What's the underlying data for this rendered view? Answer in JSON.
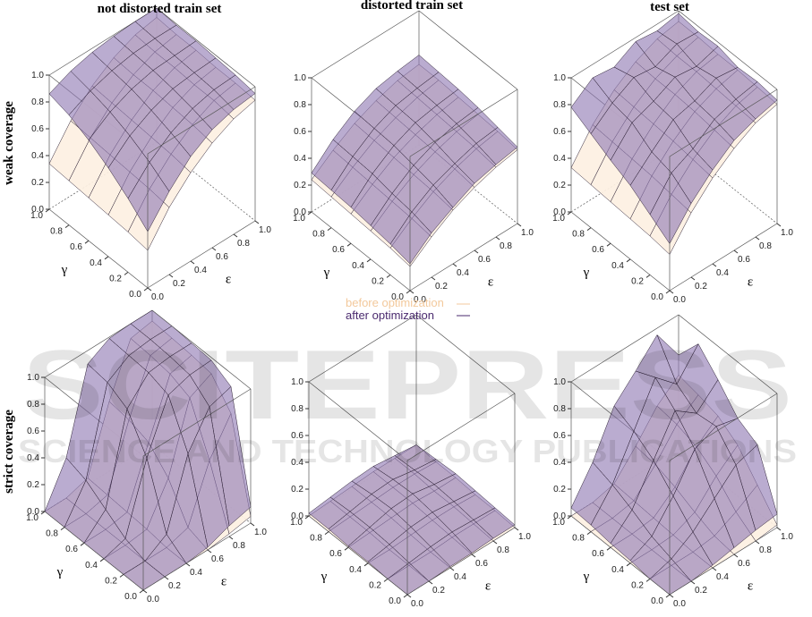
{
  "column_titles": [
    "not distorted train set",
    "distorted train set",
    "test set"
  ],
  "row_titles": [
    "weak coverage",
    "strict coverage"
  ],
  "legend": [
    {
      "name": "before optimization",
      "color": "#f3c99c"
    },
    {
      "name": "after optimization",
      "color": "#4a2a6e"
    }
  ],
  "watermark": [
    "SCITEPRESS",
    "SCIENCE AND TECHNOLOGY PUBLICATIONS"
  ],
  "ticks": [
    {
      "value": 0,
      "label": "0.0"
    },
    {
      "value": 0.2,
      "label": "0.2"
    },
    {
      "value": 0.4,
      "label": "0.4"
    },
    {
      "value": 0.6,
      "label": "0.6"
    },
    {
      "value": 0.8,
      "label": "0.8"
    },
    {
      "value": 1,
      "label": "1.0"
    }
  ],
  "xlabel": "ε",
  "ylabel": "γ",
  "x": [
    0,
    0.2,
    0.4,
    0.6,
    0.8,
    1
  ],
  "y": [
    0,
    0.2,
    0.4,
    0.6,
    0.8,
    1
  ],
  "xlim": [
    0,
    1
  ],
  "ylim": [
    0,
    1
  ],
  "zlim": [
    0,
    1
  ],
  "surface_colors": [
    "#fdf0e2",
    "#8f79b3"
  ],
  "chart_data": [
    {
      "type": "surface",
      "series": [
        {
          "values": [
            [
              0.28,
              0.5,
              0.66,
              0.78,
              0.86,
              0.9
            ],
            [
              0.3,
              0.52,
              0.68,
              0.8,
              0.88,
              0.91
            ],
            [
              0.31,
              0.53,
              0.69,
              0.81,
              0.88,
              0.91
            ],
            [
              0.32,
              0.54,
              0.7,
              0.82,
              0.89,
              0.92
            ],
            [
              0.33,
              0.55,
              0.71,
              0.82,
              0.89,
              0.92
            ],
            [
              0.34,
              0.56,
              0.72,
              0.83,
              0.9,
              0.93
            ]
          ]
        },
        {
          "values": [
            [
              0.42,
              0.62,
              0.78,
              0.88,
              0.93,
              0.95
            ],
            [
              0.55,
              0.72,
              0.84,
              0.92,
              0.96,
              0.97
            ],
            [
              0.66,
              0.8,
              0.89,
              0.95,
              0.97,
              0.98
            ],
            [
              0.75,
              0.86,
              0.93,
              0.97,
              0.98,
              0.99
            ],
            [
              0.82,
              0.9,
              0.95,
              0.98,
              0.99,
              0.99
            ],
            [
              0.86,
              0.93,
              0.97,
              0.99,
              1,
              1
            ]
          ]
        }
      ]
    },
    {
      "type": "surface",
      "series": [
        {
          "values": [
            [
              0.18,
              0.3,
              0.4,
              0.47,
              0.52,
              0.55
            ],
            [
              0.2,
              0.32,
              0.42,
              0.49,
              0.54,
              0.57
            ],
            [
              0.21,
              0.33,
              0.43,
              0.5,
              0.55,
              0.58
            ],
            [
              0.22,
              0.34,
              0.44,
              0.51,
              0.56,
              0.59
            ],
            [
              0.23,
              0.35,
              0.45,
              0.52,
              0.57,
              0.6
            ],
            [
              0.24,
              0.36,
              0.46,
              0.53,
              0.58,
              0.6
            ]
          ]
        },
        {
          "values": [
            [
              0.2,
              0.33,
              0.42,
              0.5,
              0.54,
              0.57
            ],
            [
              0.23,
              0.37,
              0.47,
              0.53,
              0.58,
              0.6
            ],
            [
              0.25,
              0.39,
              0.5,
              0.57,
              0.61,
              0.63
            ],
            [
              0.27,
              0.42,
              0.53,
              0.6,
              0.63,
              0.65
            ],
            [
              0.28,
              0.43,
              0.54,
              0.61,
              0.64,
              0.66
            ],
            [
              0.29,
              0.44,
              0.55,
              0.62,
              0.65,
              0.67
            ]
          ]
        }
      ]
    },
    {
      "type": "surface",
      "series": [
        {
          "values": [
            [
              0.27,
              0.48,
              0.64,
              0.76,
              0.85,
              0.89
            ],
            [
              0.29,
              0.5,
              0.66,
              0.78,
              0.86,
              0.9
            ],
            [
              0.3,
              0.52,
              0.68,
              0.8,
              0.87,
              0.91
            ],
            [
              0.31,
              0.53,
              0.69,
              0.81,
              0.88,
              0.91
            ],
            [
              0.32,
              0.54,
              0.7,
              0.81,
              0.88,
              0.92
            ],
            [
              0.33,
              0.55,
              0.71,
              0.82,
              0.89,
              0.92
            ]
          ]
        },
        {
          "values": [
            [
              0.35,
              0.55,
              0.7,
              0.82,
              0.88,
              0.92
            ],
            [
              0.45,
              0.66,
              0.74,
              0.86,
              0.91,
              0.94
            ],
            [
              0.55,
              0.7,
              0.84,
              0.88,
              0.95,
              0.93
            ],
            [
              0.62,
              0.8,
              0.86,
              0.94,
              0.92,
              0.97
            ],
            [
              0.7,
              0.83,
              0.92,
              0.9,
              0.97,
              0.96
            ],
            [
              0.78,
              0.9,
              0.88,
              0.97,
              0.95,
              0.98
            ]
          ]
        }
      ]
    },
    {
      "type": "surface",
      "series": [
        {
          "values": [
            [
              0,
              0,
              0,
              0,
              0.02,
              0.05
            ],
            [
              0,
              0,
              0,
              0.05,
              0.45,
              0.7
            ],
            [
              0,
              0,
              0.02,
              0.3,
              0.8,
              0.88
            ],
            [
              0,
              0,
              0.03,
              0.45,
              0.86,
              0.9
            ],
            [
              0,
              0,
              0.04,
              0.5,
              0.88,
              0.91
            ],
            [
              0,
              0,
              0.05,
              0.52,
              0.89,
              0.92
            ]
          ]
        },
        {
          "values": [
            [
              0,
              0,
              0,
              0.02,
              0.08,
              0.12
            ],
            [
              0,
              0,
              0.1,
              0.6,
              0.85,
              0.9
            ],
            [
              0,
              0.05,
              0.55,
              0.92,
              0.97,
              0.98
            ],
            [
              0,
              0.15,
              0.8,
              0.97,
              0.99,
              0.99
            ],
            [
              0,
              0.25,
              0.88,
              0.98,
              1,
              1
            ],
            [
              0,
              0.3,
              0.9,
              0.99,
              1,
              1
            ]
          ]
        }
      ]
    },
    {
      "type": "surface",
      "series": [
        {
          "values": [
            [
              0,
              0,
              0,
              0,
              0,
              0
            ],
            [
              0,
              0,
              0,
              0.01,
              0.01,
              0.01
            ],
            [
              0,
              0,
              0.01,
              0.02,
              0.02,
              0.01
            ],
            [
              0,
              0.01,
              0.02,
              0.03,
              0.02,
              0.02
            ],
            [
              0,
              0.01,
              0.02,
              0.03,
              0.03,
              0.02
            ],
            [
              0,
              0.01,
              0.02,
              0.03,
              0.03,
              0.03
            ]
          ]
        },
        {
          "values": [
            [
              0,
              0,
              0.01,
              0.01,
              0.02,
              0.02
            ],
            [
              0,
              0.02,
              0.04,
              0.05,
              0.04,
              0.03
            ],
            [
              0.01,
              0.04,
              0.07,
              0.08,
              0.06,
              0.04
            ],
            [
              0.01,
              0.05,
              0.09,
              0.1,
              0.07,
              0.05
            ],
            [
              0.02,
              0.05,
              0.08,
              0.09,
              0.06,
              0.04
            ],
            [
              0.02,
              0.04,
              0.06,
              0.07,
              0.05,
              0.03
            ]
          ]
        }
      ]
    },
    {
      "type": "surface",
      "series": [
        {
          "values": [
            [
              0,
              0,
              0,
              0,
              0,
              0.02
            ],
            [
              0,
              0,
              0,
              0.02,
              0.1,
              0.2
            ],
            [
              0,
              0,
              0.01,
              0.08,
              0.25,
              0.38
            ],
            [
              0,
              0,
              0.02,
              0.15,
              0.35,
              0.48
            ],
            [
              0,
              0,
              0.03,
              0.2,
              0.4,
              0.52
            ],
            [
              0,
              0,
              0.04,
              0.22,
              0.42,
              0.55
            ]
          ]
        },
        {
          "values": [
            [
              0,
              0,
              0.02,
              0.05,
              0.08,
              0.1
            ],
            [
              0,
              0.05,
              0.15,
              0.3,
              0.45,
              0.5
            ],
            [
              0.02,
              0.1,
              0.3,
              0.55,
              0.62,
              0.58
            ],
            [
              0.03,
              0.18,
              0.45,
              0.72,
              0.6,
              0.75
            ],
            [
              0.05,
              0.25,
              0.55,
              0.85,
              0.7,
              0.9
            ],
            [
              0.06,
              0.3,
              0.62,
              0.78,
              0.95,
              0.7
            ]
          ]
        }
      ]
    }
  ]
}
